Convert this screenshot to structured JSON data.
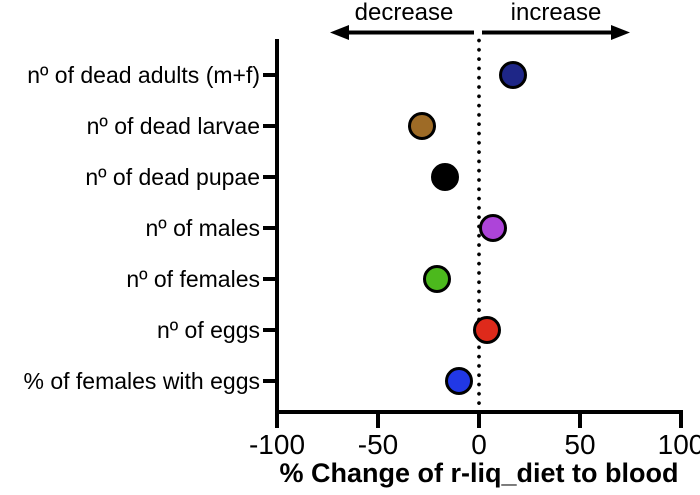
{
  "chart_data": {
    "type": "scatter",
    "subtype": "horizontal-dot-plot",
    "title": "",
    "xlabel": "% Change of r-liq_diet to blood",
    "ylabel": "",
    "xlim": [
      -100,
      100
    ],
    "x_ticks": [
      -100,
      -50,
      0,
      50,
      100
    ],
    "x_tick_labels": [
      "-100",
      "-50",
      "0",
      "50",
      "100"
    ],
    "grid": false,
    "legend": false,
    "zero_reference_line": {
      "x": 0,
      "style": "dotted",
      "color": "#000000"
    },
    "annotations": {
      "decrease": "decrease",
      "increase": "increase"
    },
    "categories": [
      "nº of dead adults (m+f)",
      "nº of dead larvae",
      "nº of dead pupae",
      "nº of males",
      "nº of females",
      "nº of eggs",
      "% of females with eggs"
    ],
    "points": [
      {
        "category": "nº of dead adults (m+f)",
        "value": 17,
        "color": "#1e2687"
      },
      {
        "category": "nº of dead larvae",
        "value": -28,
        "color": "#9e6b26"
      },
      {
        "category": "nº of dead pupae",
        "value": -17,
        "color": "#000000"
      },
      {
        "category": "nº of males",
        "value": 7,
        "color": "#ad44d9"
      },
      {
        "category": "nº of females",
        "value": -21,
        "color": "#4cb91d"
      },
      {
        "category": "nº of eggs",
        "value": 4,
        "color": "#de2a1b"
      },
      {
        "category": "% of females with eggs",
        "value": -10,
        "color": "#2138e6"
      }
    ],
    "axis_color": "#000000"
  }
}
